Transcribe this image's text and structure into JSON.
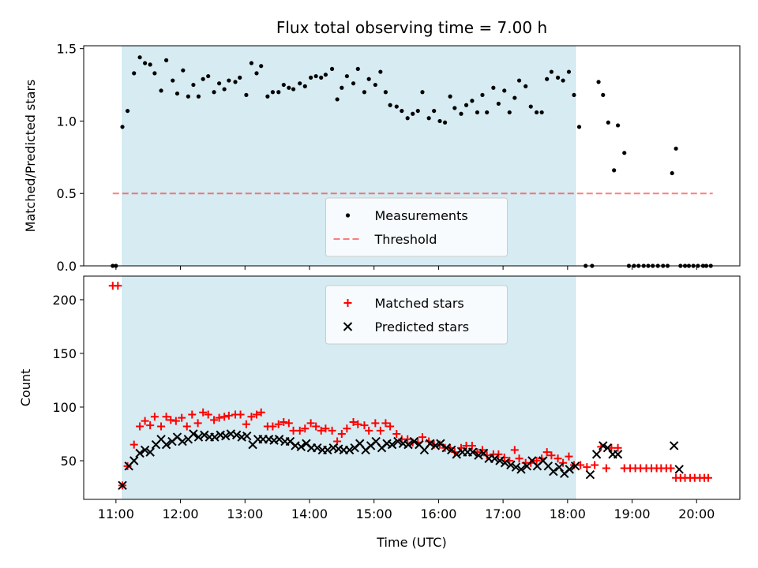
{
  "chart_data": [
    {
      "type": "scatter",
      "title": "Flux total observing time = 7.00 h",
      "ylabel": "Matched/Predicted stars",
      "ylim": [
        0,
        1.52
      ],
      "yticks": [
        0.0,
        0.5,
        1.0,
        1.5
      ],
      "ytick_labels": [
        "0.0",
        "0.5",
        "1.0",
        "1.5"
      ],
      "xlim": [
        10.5,
        20.67
      ],
      "legend": {
        "placement": "lower-center"
      },
      "span": {
        "x0": 11.1,
        "x1": 18.12,
        "color": "#add8e6"
      },
      "threshold": {
        "name": "Threshold",
        "value": 0.5,
        "x0": 10.95,
        "x1": 20.25,
        "color": "#ff0000"
      },
      "series": [
        {
          "name": "Measurements",
          "marker": "dot",
          "color": "#000000",
          "x": [
            10.95,
            11.0,
            11.1,
            11.18,
            11.28,
            11.37,
            11.45,
            11.53,
            11.6,
            11.7,
            11.78,
            11.88,
            11.95,
            12.04,
            12.12,
            12.2,
            12.28,
            12.35,
            12.43,
            12.52,
            12.6,
            12.68,
            12.75,
            12.85,
            12.92,
            13.02,
            13.1,
            13.18,
            13.25,
            13.35,
            13.43,
            13.52,
            13.6,
            13.68,
            13.75,
            13.85,
            13.93,
            14.02,
            14.1,
            14.18,
            14.25,
            14.35,
            14.43,
            14.5,
            14.58,
            14.68,
            14.75,
            14.85,
            14.92,
            15.02,
            15.1,
            15.18,
            15.25,
            15.35,
            15.43,
            15.52,
            15.6,
            15.68,
            15.75,
            15.85,
            15.93,
            16.02,
            16.1,
            16.18,
            16.25,
            16.35,
            16.43,
            16.52,
            16.6,
            16.68,
            16.75,
            16.85,
            16.93,
            17.02,
            17.1,
            17.18,
            17.25,
            17.35,
            17.43,
            17.52,
            17.6,
            17.68,
            17.75,
            17.85,
            17.93,
            18.02,
            18.1,
            18.18,
            18.28,
            18.38,
            18.48,
            18.55,
            18.63,
            18.72,
            18.78,
            18.88,
            18.95,
            19.03,
            19.1,
            19.18,
            19.25,
            19.32,
            19.4,
            19.48,
            19.55,
            19.62,
            19.68,
            19.75,
            19.82,
            19.88,
            19.95,
            20.02,
            20.1,
            20.15,
            20.22
          ],
          "y": [
            0.0,
            0.0,
            0.96,
            1.07,
            1.33,
            1.44,
            1.4,
            1.39,
            1.33,
            1.21,
            1.42,
            1.28,
            1.19,
            1.35,
            1.17,
            1.25,
            1.17,
            1.29,
            1.31,
            1.2,
            1.26,
            1.22,
            1.28,
            1.27,
            1.3,
            1.18,
            1.4,
            1.33,
            1.38,
            1.17,
            1.2,
            1.2,
            1.25,
            1.23,
            1.22,
            1.26,
            1.24,
            1.3,
            1.31,
            1.3,
            1.32,
            1.36,
            1.15,
            1.23,
            1.31,
            1.26,
            1.36,
            1.2,
            1.29,
            1.25,
            1.34,
            1.2,
            1.11,
            1.1,
            1.07,
            1.02,
            1.05,
            1.07,
            1.2,
            1.02,
            1.07,
            1.0,
            0.99,
            1.17,
            1.09,
            1.05,
            1.11,
            1.14,
            1.06,
            1.18,
            1.06,
            1.23,
            1.12,
            1.21,
            1.06,
            1.16,
            1.28,
            1.24,
            1.1,
            1.06,
            1.06,
            1.29,
            1.34,
            1.3,
            1.28,
            1.34,
            1.18,
            0.96,
            0.0,
            0.0,
            1.27,
            1.18,
            0.99,
            0.66,
            0.97,
            0.78,
            0.0,
            0.0,
            0.0,
            0.0,
            0.0,
            0.0,
            0.0,
            0.0,
            0.0,
            0.64,
            0.81,
            0.0,
            0.0,
            0.0,
            0.0,
            0.0,
            0.0,
            0.0,
            0.0
          ]
        }
      ]
    },
    {
      "type": "scatter",
      "xlabel": "Time (UTC)",
      "ylabel": "Count",
      "ylim": [
        14,
        222
      ],
      "yticks": [
        50,
        100,
        150,
        200
      ],
      "ytick_labels": [
        "50",
        "100",
        "150",
        "200"
      ],
      "xlim": [
        10.5,
        20.67
      ],
      "xticks": [
        11,
        12,
        13,
        14,
        15,
        16,
        17,
        18,
        19,
        20
      ],
      "xtick_labels": [
        "11:00",
        "12:00",
        "13:00",
        "14:00",
        "15:00",
        "16:00",
        "17:00",
        "18:00",
        "19:00",
        "20:00"
      ],
      "legend": {
        "placement": "upper-center"
      },
      "span": {
        "x0": 11.1,
        "x1": 18.12,
        "color": "#add8e6"
      },
      "series": [
        {
          "name": "Matched stars",
          "marker": "plus",
          "color": "#ff0000",
          "x": [
            10.95,
            11.03,
            11.1,
            11.18,
            11.28,
            11.37,
            11.45,
            11.53,
            11.6,
            11.7,
            11.78,
            11.85,
            11.93,
            12.02,
            12.1,
            12.18,
            12.27,
            12.35,
            12.43,
            12.52,
            12.6,
            12.68,
            12.75,
            12.85,
            12.93,
            13.02,
            13.1,
            13.18,
            13.25,
            13.35,
            13.43,
            13.52,
            13.6,
            13.68,
            13.75,
            13.85,
            13.93,
            14.02,
            14.1,
            14.18,
            14.25,
            14.35,
            14.43,
            14.5,
            14.58,
            14.68,
            14.75,
            14.85,
            14.92,
            15.02,
            15.1,
            15.18,
            15.25,
            15.35,
            15.43,
            15.52,
            15.6,
            15.68,
            15.75,
            15.85,
            15.93,
            16.02,
            16.1,
            16.18,
            16.25,
            16.35,
            16.43,
            16.52,
            16.6,
            16.68,
            16.75,
            16.85,
            16.93,
            17.02,
            17.1,
            17.18,
            17.25,
            17.35,
            17.43,
            17.52,
            17.6,
            17.68,
            17.75,
            17.85,
            17.93,
            18.02,
            18.1,
            18.2,
            18.3,
            18.42,
            18.52,
            18.6,
            18.68,
            18.78,
            18.88,
            18.97,
            19.05,
            19.13,
            19.22,
            19.3,
            19.38,
            19.45,
            19.53,
            19.6,
            19.68,
            19.75,
            19.82,
            19.9,
            19.97,
            20.05,
            20.12,
            20.18
          ],
          "y": [
            213,
            213,
            27,
            45,
            65,
            82,
            87,
            83,
            91,
            82,
            91,
            88,
            87,
            90,
            82,
            93,
            85,
            95,
            93,
            88,
            90,
            91,
            92,
            93,
            93,
            84,
            91,
            93,
            95,
            82,
            82,
            84,
            86,
            85,
            78,
            78,
            80,
            85,
            82,
            78,
            80,
            78,
            68,
            75,
            80,
            86,
            84,
            83,
            78,
            85,
            78,
            85,
            82,
            75,
            70,
            70,
            67,
            67,
            72,
            68,
            65,
            65,
            62,
            62,
            58,
            62,
            64,
            64,
            58,
            60,
            55,
            56,
            56,
            53,
            50,
            60,
            52,
            48,
            48,
            50,
            52,
            58,
            55,
            52,
            48,
            54,
            46,
            46,
            44,
            46,
            63,
            43,
            62,
            62,
            43,
            43,
            43,
            43,
            43,
            43,
            43,
            43,
            43,
            43,
            34,
            34,
            34,
            34,
            34,
            34,
            34,
            34
          ]
        },
        {
          "name": "Predicted stars",
          "marker": "x",
          "color": "#000000",
          "x": [
            11.1,
            11.2,
            11.28,
            11.37,
            11.45,
            11.53,
            11.62,
            11.7,
            11.78,
            11.87,
            11.95,
            12.03,
            12.12,
            12.2,
            12.28,
            12.37,
            12.45,
            12.53,
            12.62,
            12.7,
            12.78,
            12.87,
            12.95,
            13.03,
            13.12,
            13.2,
            13.28,
            13.37,
            13.45,
            13.53,
            13.62,
            13.7,
            13.78,
            13.87,
            13.95,
            14.03,
            14.12,
            14.2,
            14.28,
            14.37,
            14.45,
            14.53,
            14.62,
            14.7,
            14.78,
            14.87,
            14.95,
            15.03,
            15.12,
            15.2,
            15.28,
            15.37,
            15.45,
            15.53,
            15.62,
            15.7,
            15.78,
            15.87,
            15.95,
            16.03,
            16.12,
            16.2,
            16.28,
            16.37,
            16.45,
            16.53,
            16.62,
            16.7,
            16.78,
            16.87,
            16.95,
            17.03,
            17.12,
            17.2,
            17.28,
            17.37,
            17.45,
            17.53,
            17.62,
            17.7,
            17.78,
            17.87,
            17.95,
            18.03,
            18.12,
            18.35,
            18.45,
            18.55,
            18.62,
            18.7,
            18.78,
            19.65,
            19.73
          ],
          "y": [
            27,
            45,
            50,
            57,
            60,
            58,
            65,
            70,
            65,
            68,
            72,
            68,
            70,
            75,
            72,
            74,
            72,
            72,
            74,
            73,
            75,
            74,
            72,
            73,
            65,
            70,
            70,
            70,
            69,
            70,
            68,
            68,
            64,
            63,
            66,
            62,
            62,
            60,
            60,
            62,
            61,
            60,
            60,
            62,
            66,
            60,
            64,
            68,
            62,
            66,
            65,
            68,
            66,
            65,
            68,
            65,
            60,
            66,
            64,
            66,
            62,
            60,
            56,
            58,
            58,
            58,
            55,
            57,
            52,
            52,
            50,
            48,
            46,
            44,
            42,
            45,
            50,
            45,
            50,
            45,
            40,
            44,
            38,
            42,
            45,
            37,
            56,
            64,
            62,
            56,
            56,
            64,
            42
          ]
        }
      ]
    }
  ]
}
